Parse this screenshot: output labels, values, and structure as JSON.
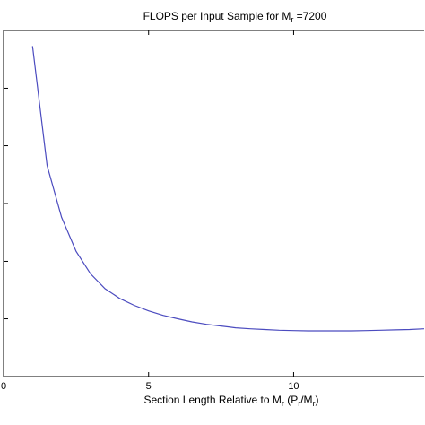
{
  "chart_data": {
    "type": "line",
    "title_parts": {
      "prefix": "FLOPS per Input Sample for M",
      "subscript": "r",
      "suffix": " =7200"
    },
    "xlabel_parts": {
      "prefix": "Section Length Relative to M",
      "sub1": "r",
      "middle": " (P",
      "sub2": "r",
      "middle2": "/M",
      "sub3": "r",
      "suffix": ")"
    },
    "ylabel": "",
    "xlim": [
      0,
      14.5
    ],
    "ylim": [
      0,
      1
    ],
    "x_ticks": [
      0,
      5,
      10
    ],
    "x_tick_labels": [
      "0",
      "5",
      "10"
    ],
    "y_ticks": [
      0,
      0.167,
      0.333,
      0.5,
      0.667,
      0.833
    ],
    "line_color": "#4b4bbf",
    "grid": false,
    "series": [
      {
        "x": [
          1.0,
          1.5,
          2.0,
          2.5,
          3.0,
          3.5,
          4.0,
          4.5,
          5.0,
          5.5,
          6.0,
          6.5,
          7.0,
          7.5,
          8.0,
          8.5,
          9.0,
          9.5,
          10.0,
          10.5,
          11.0,
          11.5,
          12.0,
          12.5,
          13.0,
          13.5,
          14.0,
          14.5
        ],
        "y": [
          0.955,
          0.61,
          0.46,
          0.362,
          0.297,
          0.254,
          0.226,
          0.206,
          0.19,
          0.177,
          0.167,
          0.158,
          0.151,
          0.146,
          0.141,
          0.138,
          0.136,
          0.134,
          0.133,
          0.132,
          0.132,
          0.132,
          0.132,
          0.133,
          0.134,
          0.135,
          0.136,
          0.138
        ]
      }
    ]
  }
}
